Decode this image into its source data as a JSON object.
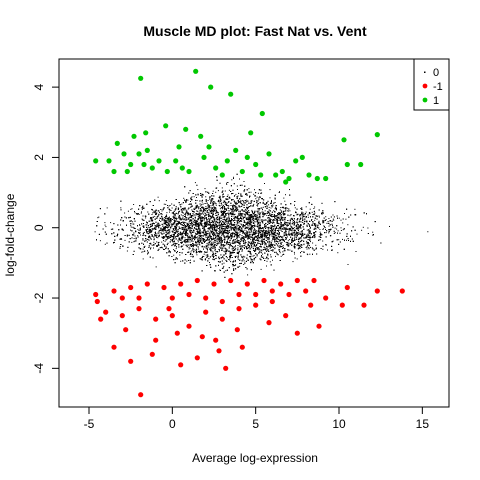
{
  "chart_data": {
    "type": "scatter",
    "title": "Muscle MD plot: Fast Nat vs. Vent",
    "xlabel": "Average log-expression",
    "ylabel": "log-fold-change",
    "xlim": [
      -6.8,
      16.6
    ],
    "ylim": [
      -5.1,
      4.8
    ],
    "xticks": [
      -5,
      0,
      5,
      10,
      15
    ],
    "yticks": [
      -4,
      -2,
      0,
      2,
      4
    ],
    "grid": false,
    "legend_position": "top-right",
    "series": [
      {
        "name": "0",
        "color": "#000000",
        "marker": "dot",
        "description_of_cloud": {
          "x_range": [
            -5.5,
            16
          ],
          "y_range": [
            -1.4,
            1.6
          ],
          "x_center": 3.5
        },
        "points": [
          [
            0.1,
            0.2
          ],
          [
            2.5,
            -0.3
          ],
          [
            5.5,
            0.4
          ],
          [
            -2,
            0.1
          ],
          [
            8,
            0.2
          ],
          [
            10.5,
            0.1
          ],
          [
            13,
            0.05
          ],
          [
            15.3,
            -0.1
          ],
          [
            -4.5,
            0.3
          ],
          [
            6.5,
            -0.8
          ],
          [
            1.5,
            1.1
          ],
          [
            -1,
            -1.1
          ],
          [
            4,
            1.4
          ],
          [
            9,
            -0.6
          ],
          [
            12,
            -0.2
          ],
          [
            3,
            0.9
          ],
          [
            7,
            1.1
          ],
          [
            -3,
            -0.5
          ]
        ]
      },
      {
        "name": "-1",
        "color": "#ff0000",
        "marker": "filled-circle",
        "points": [
          [
            -1.9,
            -4.75
          ],
          [
            3.2,
            -4.0
          ],
          [
            -2.5,
            -3.8
          ],
          [
            0.5,
            -3.9
          ],
          [
            -1.2,
            -3.6
          ],
          [
            4.2,
            -3.4
          ],
          [
            1.5,
            -3.7
          ],
          [
            -3.5,
            -3.4
          ],
          [
            2.6,
            -3.2
          ],
          [
            7.5,
            -3.0
          ],
          [
            8.8,
            -2.8
          ],
          [
            -4.3,
            -2.6
          ],
          [
            13.8,
            -1.8
          ],
          [
            11.5,
            -2.2
          ],
          [
            12.3,
            -1.8
          ],
          [
            10.2,
            -2.2
          ],
          [
            9.2,
            -2.0
          ],
          [
            -4.6,
            -1.9
          ],
          [
            -4,
            -2.4
          ],
          [
            -3,
            -2.5
          ],
          [
            -2,
            -2.3
          ],
          [
            -1,
            -2.6
          ],
          [
            0,
            -2.5
          ],
          [
            1,
            -2.8
          ],
          [
            2,
            -2.4
          ],
          [
            3,
            -2.6
          ],
          [
            4,
            -2.3
          ],
          [
            5,
            -2.2
          ],
          [
            6,
            -2.1
          ],
          [
            7,
            -1.9
          ],
          [
            8,
            -1.8
          ],
          [
            -3.5,
            -1.8
          ],
          [
            -2.5,
            -1.7
          ],
          [
            -1.5,
            -1.6
          ],
          [
            -0.5,
            -1.7
          ],
          [
            0.5,
            -1.6
          ],
          [
            1.5,
            -1.5
          ],
          [
            2.5,
            -1.6
          ],
          [
            3.5,
            -1.5
          ],
          [
            4.5,
            -1.6
          ],
          [
            5.5,
            -1.5
          ],
          [
            6.5,
            -1.6
          ],
          [
            7.5,
            -1.5
          ],
          [
            -2,
            -2.0
          ],
          [
            0,
            -2.0
          ],
          [
            2,
            -2.0
          ],
          [
            4,
            -1.9
          ],
          [
            6,
            -1.8
          ],
          [
            -3,
            -2.0
          ],
          [
            1,
            -1.9
          ],
          [
            3,
            -2.1
          ],
          [
            5,
            -1.9
          ],
          [
            8.5,
            -1.5
          ],
          [
            10.5,
            -1.7
          ],
          [
            -1,
            -3.2
          ],
          [
            0.3,
            -3.0
          ],
          [
            1.8,
            -3.1
          ],
          [
            3.9,
            -2.9
          ],
          [
            5.8,
            -2.7
          ],
          [
            -2.8,
            -2.9
          ],
          [
            6.8,
            -2.5
          ],
          [
            2.8,
            -3.5
          ],
          [
            -0.2,
            -2.3
          ],
          [
            -4.5,
            -2.1
          ],
          [
            8.3,
            -2.2
          ]
        ]
      },
      {
        "name": "1",
        "color": "#00c800",
        "marker": "filled-circle",
        "points": [
          [
            1.4,
            4.45
          ],
          [
            -1.9,
            4.25
          ],
          [
            2.3,
            4.0
          ],
          [
            3.5,
            3.8
          ],
          [
            5.4,
            3.25
          ],
          [
            -0.4,
            2.9
          ],
          [
            4.7,
            2.7
          ],
          [
            12.3,
            2.65
          ],
          [
            0.8,
            2.8
          ],
          [
            1.7,
            2.6
          ],
          [
            -1.6,
            2.7
          ],
          [
            -2.3,
            2.6
          ],
          [
            10.3,
            2.5
          ],
          [
            -3.3,
            2.4
          ],
          [
            -4.6,
            1.9
          ],
          [
            -3.8,
            1.9
          ],
          [
            -2.9,
            2.1
          ],
          [
            -2.5,
            1.8
          ],
          [
            -2,
            2.1
          ],
          [
            -1.7,
            1.8
          ],
          [
            -1.5,
            2.2
          ],
          [
            -1.2,
            1.7
          ],
          [
            -0.8,
            1.9
          ],
          [
            -0.3,
            1.6
          ],
          [
            0.2,
            1.9
          ],
          [
            0.6,
            1.7
          ],
          [
            1,
            1.6
          ],
          [
            1.9,
            2.0
          ],
          [
            2.6,
            1.7
          ],
          [
            3,
            1.5
          ],
          [
            3.8,
            2.2
          ],
          [
            4.2,
            1.6
          ],
          [
            4.5,
            2.0
          ],
          [
            5,
            1.8
          ],
          [
            5.3,
            1.5
          ],
          [
            5.8,
            2.1
          ],
          [
            6.2,
            1.5
          ],
          [
            6.6,
            1.6
          ],
          [
            7,
            1.4
          ],
          [
            7.4,
            1.9
          ],
          [
            7.8,
            2.0
          ],
          [
            8.2,
            1.5
          ],
          [
            8.7,
            1.4
          ],
          [
            9.2,
            1.4
          ],
          [
            10.5,
            1.8
          ],
          [
            11.3,
            1.8
          ],
          [
            -3.5,
            1.6
          ],
          [
            0.4,
            2.3
          ],
          [
            2.2,
            2.3
          ],
          [
            3.3,
            1.9
          ],
          [
            6.8,
            1.3
          ],
          [
            -2.7,
            1.6
          ]
        ]
      }
    ],
    "legend": [
      "0",
      "-1",
      "1"
    ]
  }
}
